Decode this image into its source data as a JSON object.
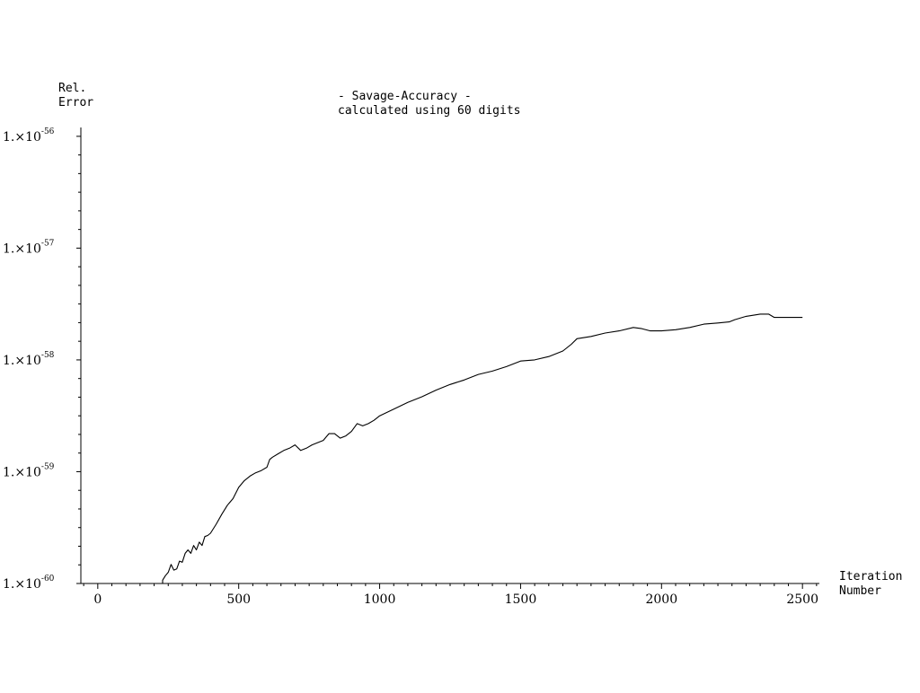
{
  "chart_data": {
    "type": "line",
    "title": "- Savage-Accuracy -",
    "subtitle": "calculated using 60 digits",
    "ylabel": [
      "Rel.",
      "Error"
    ],
    "xlabel": [
      "Iteration",
      "Number"
    ],
    "y_scale": "log",
    "xlim": [
      -60,
      2560
    ],
    "ylim": [
      1e-60,
      1.2e-56
    ],
    "x_ticks": [
      {
        "value": 0,
        "label": "0"
      },
      {
        "value": 500,
        "label": "500"
      },
      {
        "value": 1000,
        "label": "1000"
      },
      {
        "value": 1500,
        "label": "1500"
      },
      {
        "value": 2000,
        "label": "2000"
      },
      {
        "value": 2500,
        "label": "2500"
      }
    ],
    "y_ticks": [
      {
        "exponent": -56,
        "mantissa": "1.×10",
        "power": "-56"
      },
      {
        "exponent": -57,
        "mantissa": "1.×10",
        "power": "-57"
      },
      {
        "exponent": -58,
        "mantissa": "1.×10",
        "power": "-58"
      },
      {
        "exponent": -59,
        "mantissa": "1.×10",
        "power": "-59"
      },
      {
        "exponent": -60,
        "mantissa": "1.×10",
        "power": "-60"
      }
    ],
    "grid": false,
    "series": [
      {
        "color": "#000000",
        "x": [
          230,
          240,
          250,
          260,
          270,
          280,
          290,
          300,
          310,
          320,
          330,
          340,
          350,
          360,
          370,
          380,
          390,
          400,
          420,
          440,
          460,
          480,
          500,
          520,
          540,
          560,
          580,
          600,
          610,
          620,
          640,
          660,
          680,
          700,
          720,
          740,
          760,
          780,
          800,
          820,
          840,
          860,
          880,
          900,
          920,
          940,
          960,
          980,
          1000,
          1050,
          1100,
          1150,
          1200,
          1250,
          1300,
          1350,
          1400,
          1450,
          1500,
          1550,
          1600,
          1650,
          1680,
          1700,
          1750,
          1800,
          1850,
          1900,
          1930,
          1960,
          2000,
          2050,
          2100,
          2150,
          2200,
          2240,
          2260,
          2300,
          2350,
          2380,
          2400,
          2450,
          2500
        ],
        "y_log10": [
          -59.97,
          -59.93,
          -59.9,
          -59.83,
          -59.88,
          -59.87,
          -59.8,
          -59.81,
          -59.73,
          -59.7,
          -59.73,
          -59.66,
          -59.7,
          -59.63,
          -59.66,
          -59.58,
          -59.57,
          -59.55,
          -59.47,
          -59.38,
          -59.3,
          -59.24,
          -59.14,
          -59.08,
          -59.04,
          -59.01,
          -58.99,
          -58.96,
          -58.89,
          -58.87,
          -58.84,
          -58.81,
          -58.79,
          -58.76,
          -58.81,
          -58.79,
          -58.76,
          -58.74,
          -58.72,
          -58.66,
          -58.66,
          -58.7,
          -58.68,
          -58.64,
          -58.57,
          -58.59,
          -58.57,
          -58.54,
          -58.5,
          -58.44,
          -58.38,
          -58.33,
          -58.27,
          -58.22,
          -58.18,
          -58.13,
          -58.1,
          -58.06,
          -58.01,
          -58.0,
          -57.97,
          -57.92,
          -57.86,
          -57.81,
          -57.79,
          -57.76,
          -57.74,
          -57.71,
          -57.72,
          -57.74,
          -57.74,
          -57.73,
          -57.71,
          -57.68,
          -57.67,
          -57.66,
          -57.64,
          -57.61,
          -57.59,
          -57.59,
          -57.62,
          -57.62,
          -57.62
        ]
      }
    ]
  }
}
